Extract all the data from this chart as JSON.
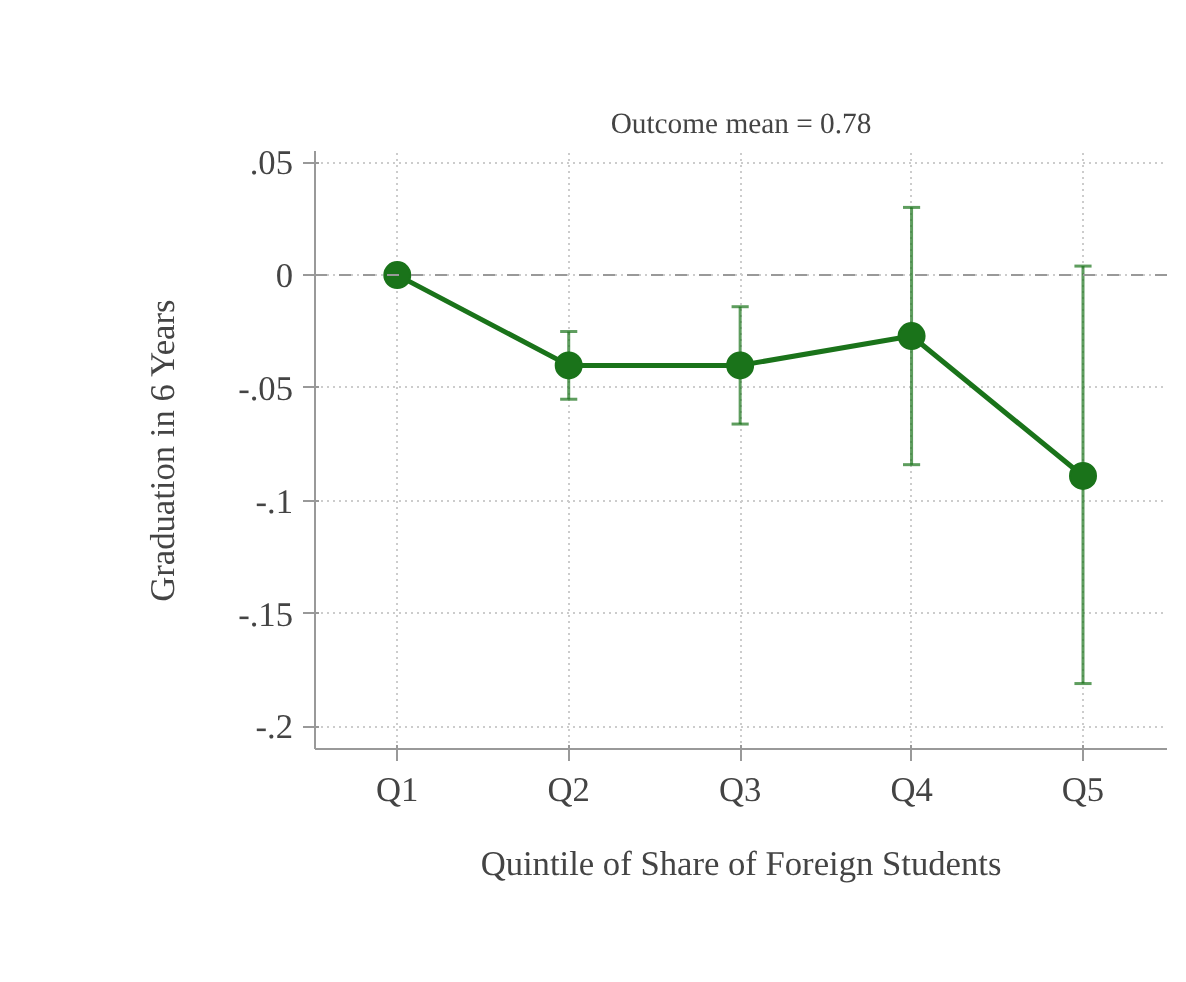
{
  "chart_data": {
    "type": "line",
    "subtitle": "Outcome mean = 0.78",
    "xlabel": "Quintile of Share of Foreign Students",
    "ylabel": "Graduation in 6 Years",
    "categories": [
      "Q1",
      "Q2",
      "Q3",
      "Q4",
      "Q5"
    ],
    "series": [
      {
        "color": "#1a731a",
        "values": [
          0,
          -0.04,
          -0.04,
          -0.027,
          -0.089
        ],
        "errors": [
          null,
          [
            -0.055,
            -0.025
          ],
          [
            -0.066,
            -0.014
          ],
          [
            -0.084,
            0.03
          ],
          [
            -0.181,
            0.004
          ]
        ]
      }
    ],
    "ylim": [
      -0.21,
      0.055
    ],
    "yticks": [
      {
        "value": 0.05,
        "label": ".05"
      },
      0,
      {
        "value": -0.05,
        "label": "-.05"
      },
      {
        "value": -0.1,
        "label": "-.1"
      },
      {
        "value": -0.15,
        "label": "-.15"
      },
      {
        "value": -0.2,
        "label": "-.2"
      }
    ],
    "ref_lines": [
      {
        "axis": "y",
        "value": 0,
        "label": null,
        "color": "#999999",
        "line_style": "dashed"
      }
    ],
    "grid": true,
    "marker": "circle",
    "line_style": "solid"
  }
}
